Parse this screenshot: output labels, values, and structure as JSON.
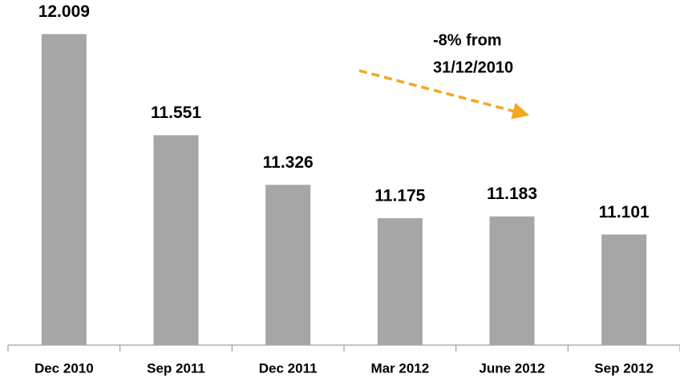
{
  "chart_data": {
    "type": "bar",
    "categories": [
      "Dec 2010",
      "Sep 2011",
      "Dec 2011",
      "Mar 2012",
      "June 2012",
      "Sep 2012"
    ],
    "values": [
      12.009,
      11.551,
      11.326,
      11.175,
      11.183,
      11.101
    ],
    "color": "#a6a6a6",
    "ylim": [
      10.6,
      12.2
    ],
    "annotation": [
      "-8% from",
      "31/12/2010"
    ],
    "annotation_color": "#f5a623"
  }
}
